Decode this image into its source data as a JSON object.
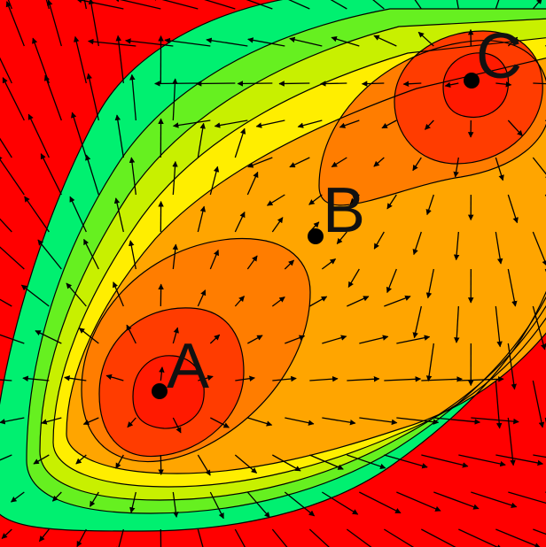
{
  "colors": {
    "outer": "#ff0000",
    "level1": "#00f070",
    "level2": "#66f020",
    "level3": "#c8f000",
    "level4": "#ffee00",
    "level5": "#ffa500",
    "level6": "#ff7d00",
    "level7": "#ff3c00",
    "level8": "#ff1a00",
    "contour_line": "#000000",
    "arrow": "#000000",
    "point": "#000000"
  },
  "points": [
    {
      "id": "A",
      "label": "A"
    },
    {
      "id": "B",
      "label": "B"
    },
    {
      "id": "C",
      "label": "C"
    }
  ]
}
